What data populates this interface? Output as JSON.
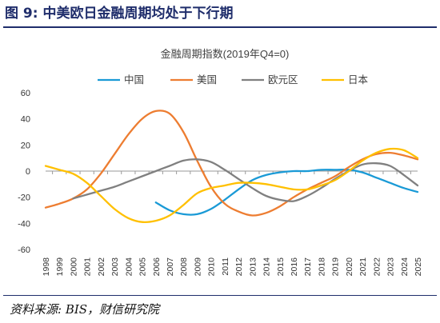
{
  "figure": {
    "title": "图 9:  中美欧日金融周期均处于下行期",
    "source": "资料来源: BIS，财信研究院"
  },
  "chart_data": {
    "type": "line",
    "title": "金融周期指数(2019年Q4=0)",
    "xlabel": "",
    "ylabel": "",
    "x": [
      "1998",
      "1999",
      "2000",
      "2001",
      "2002",
      "2003",
      "2004",
      "2005",
      "2006",
      "2007",
      "2008",
      "2009",
      "2010",
      "2011",
      "2012",
      "2013",
      "2014",
      "2015",
      "2016",
      "2017",
      "2018",
      "2019",
      "2020",
      "2021",
      "2022",
      "2023",
      "2024",
      "2025"
    ],
    "ylim": [
      -60,
      60
    ],
    "yticks": [
      60,
      40,
      20,
      0,
      -20,
      -40,
      -60
    ],
    "grid": false,
    "legend_position": "top",
    "series": [
      {
        "name": "中国",
        "color": "#1a9ad6",
        "points": [
          [
            2006,
            -24
          ],
          [
            2007,
            -30
          ],
          [
            2008,
            -33
          ],
          [
            2009,
            -33
          ],
          [
            2010,
            -29
          ],
          [
            2011,
            -22
          ],
          [
            2012,
            -14
          ],
          [
            2013,
            -7
          ],
          [
            2014,
            -3
          ],
          [
            2015,
            -1
          ],
          [
            2016,
            0
          ],
          [
            2017,
            0
          ],
          [
            2018,
            1
          ],
          [
            2019,
            1
          ],
          [
            2020,
            1
          ],
          [
            2021,
            -1
          ],
          [
            2022,
            -5
          ],
          [
            2023,
            -9
          ],
          [
            2024,
            -13
          ],
          [
            2025,
            -16
          ]
        ]
      },
      {
        "name": "美国",
        "color": "#ed7d31",
        "points": [
          [
            1998,
            -28
          ],
          [
            1999,
            -25
          ],
          [
            2000,
            -21
          ],
          [
            2001,
            -14
          ],
          [
            2002,
            -2
          ],
          [
            2003,
            13
          ],
          [
            2004,
            28
          ],
          [
            2005,
            40
          ],
          [
            2006,
            46
          ],
          [
            2007,
            44
          ],
          [
            2008,
            30
          ],
          [
            2009,
            8
          ],
          [
            2010,
            -12
          ],
          [
            2011,
            -25
          ],
          [
            2012,
            -31
          ],
          [
            2013,
            -34
          ],
          [
            2014,
            -32
          ],
          [
            2015,
            -27
          ],
          [
            2016,
            -20
          ],
          [
            2017,
            -14
          ],
          [
            2018,
            -9
          ],
          [
            2019,
            -4
          ],
          [
            2020,
            3
          ],
          [
            2021,
            9
          ],
          [
            2022,
            13
          ],
          [
            2023,
            14
          ],
          [
            2024,
            12
          ],
          [
            2025,
            9
          ]
        ]
      },
      {
        "name": "欧元区",
        "color": "#808080",
        "points": [
          [
            2000,
            -21
          ],
          [
            2001,
            -18
          ],
          [
            2002,
            -15
          ],
          [
            2003,
            -12
          ],
          [
            2004,
            -8
          ],
          [
            2005,
            -4
          ],
          [
            2006,
            0
          ],
          [
            2007,
            4
          ],
          [
            2008,
            8
          ],
          [
            2009,
            9
          ],
          [
            2010,
            7
          ],
          [
            2011,
            1
          ],
          [
            2012,
            -6
          ],
          [
            2013,
            -13
          ],
          [
            2014,
            -19
          ],
          [
            2015,
            -22
          ],
          [
            2016,
            -23
          ],
          [
            2017,
            -19
          ],
          [
            2018,
            -13
          ],
          [
            2019,
            -6
          ],
          [
            2020,
            0
          ],
          [
            2021,
            5
          ],
          [
            2022,
            6
          ],
          [
            2023,
            4
          ],
          [
            2024,
            -3
          ],
          [
            2025,
            -11
          ]
        ]
      },
      {
        "name": "日本",
        "color": "#ffc000",
        "points": [
          [
            1998,
            4
          ],
          [
            1999,
            1
          ],
          [
            2000,
            -2
          ],
          [
            2001,
            -9
          ],
          [
            2002,
            -19
          ],
          [
            2003,
            -29
          ],
          [
            2004,
            -36
          ],
          [
            2005,
            -39
          ],
          [
            2006,
            -38
          ],
          [
            2007,
            -34
          ],
          [
            2008,
            -26
          ],
          [
            2009,
            -17
          ],
          [
            2010,
            -13
          ],
          [
            2011,
            -11
          ],
          [
            2012,
            -9
          ],
          [
            2013,
            -9
          ],
          [
            2014,
            -10
          ],
          [
            2015,
            -12
          ],
          [
            2016,
            -14
          ],
          [
            2017,
            -14
          ],
          [
            2018,
            -11
          ],
          [
            2019,
            -7
          ],
          [
            2020,
            0
          ],
          [
            2021,
            8
          ],
          [
            2022,
            14
          ],
          [
            2023,
            17
          ],
          [
            2024,
            16
          ],
          [
            2025,
            10
          ]
        ]
      }
    ]
  }
}
